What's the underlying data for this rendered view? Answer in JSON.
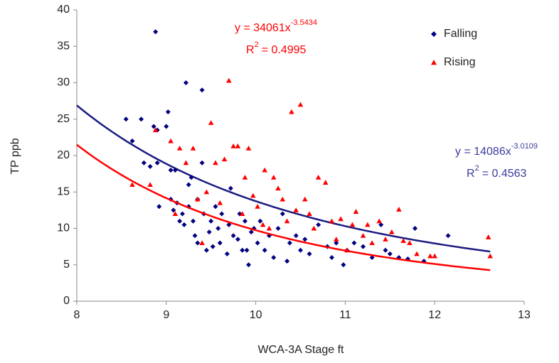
{
  "chart_data": {
    "type": "scatter",
    "x_label": "WCA-3A Stage ft",
    "y_label": "TP ppb",
    "xlim": [
      8,
      13
    ],
    "xticks": [
      8,
      9,
      10,
      11,
      12,
      13
    ],
    "ylim": [
      0,
      40
    ],
    "yticks": [
      0,
      5,
      10,
      15,
      20,
      25,
      30,
      35,
      40
    ],
    "grid": false,
    "legend": "top-right",
    "series": [
      {
        "name": "Falling",
        "color": "#000080",
        "marker": "diamond",
        "x": [
          8.55,
          8.62,
          8.72,
          8.75,
          8.82,
          8.86,
          8.88,
          8.9,
          8.9,
          8.92,
          9,
          9.02,
          9.05,
          9.05,
          9.08,
          9.1,
          9.12,
          9.15,
          9.18,
          9.2,
          9.22,
          9.25,
          9.25,
          9.28,
          9.3,
          9.32,
          9.35,
          9.35,
          9.4,
          9.4,
          9.42,
          9.45,
          9.48,
          9.5,
          9.52,
          9.55,
          9.58,
          9.6,
          9.62,
          9.68,
          9.7,
          9.72,
          9.75,
          9.8,
          9.82,
          9.85,
          9.88,
          9.9,
          9.92,
          9.95,
          9.98,
          10.02,
          10.05,
          10.1,
          10.15,
          10.2,
          10.25,
          10.3,
          10.35,
          10.38,
          10.45,
          10.5,
          10.55,
          10.6,
          10.7,
          10.8,
          10.85,
          10.9,
          10.98,
          11.02,
          11.1,
          11.2,
          11.3,
          11.4,
          11.45,
          11.5,
          11.6,
          11.7,
          11.78,
          11.88,
          12.15
        ],
        "values": [
          25,
          22,
          25,
          19,
          18.5,
          24,
          37,
          23.5,
          19,
          13,
          24,
          26,
          18,
          14,
          12.5,
          18,
          13.5,
          11,
          12,
          10.5,
          30,
          13,
          16,
          17,
          11,
          9,
          14,
          8,
          29,
          19,
          12,
          7,
          9.5,
          11,
          7.5,
          13,
          10,
          8,
          12,
          6.5,
          10.5,
          15.5,
          9,
          8.5,
          12,
          7,
          11,
          7,
          5,
          9.5,
          10,
          8,
          11,
          7,
          9,
          6,
          10,
          12,
          5.5,
          8,
          9,
          7,
          8.5,
          6.5,
          10.5,
          7.5,
          6,
          8,
          5,
          7,
          8,
          7.5,
          6,
          10.5,
          7,
          6.5,
          6,
          5.8,
          10,
          5.5,
          9
        ],
        "trendline": {
          "coefficient": 14086,
          "exponent": -3.0109,
          "x": [
            8,
            12.62
          ],
          "color": "#1a1a80",
          "label_color": "#3c3ca0",
          "equation": "y = 14086x",
          "equation_exponent": "-3.0109",
          "r_label": "R",
          "r_sup": "2",
          "r_text": "= 0.4563"
        }
      },
      {
        "name": "Rising",
        "color": "#ff0000",
        "marker": "triangle",
        "x": [
          8.62,
          8.82,
          8.88,
          9.05,
          9.1,
          9.15,
          9.22,
          9.3,
          9.35,
          9.4,
          9.45,
          9.5,
          9.55,
          9.6,
          9.65,
          9.7,
          9.75,
          9.8,
          9.85,
          9.88,
          9.92,
          9.97,
          10.02,
          10.08,
          10.1,
          10.15,
          10.2,
          10.25,
          10.3,
          10.35,
          10.4,
          10.45,
          10.5,
          10.55,
          10.6,
          10.65,
          10.7,
          10.78,
          10.85,
          10.9,
          10.95,
          11.02,
          11.08,
          11.12,
          11.2,
          11.25,
          11.3,
          11.38,
          11.45,
          11.52,
          11.6,
          11.65,
          11.72,
          11.8,
          11.95,
          12.0,
          12.6,
          12.62
        ],
        "values": [
          16,
          16,
          23.5,
          22,
          12,
          21,
          19,
          21,
          14,
          8,
          15,
          24.5,
          19,
          13.5,
          19.5,
          30.3,
          21.3,
          21.3,
          12,
          17,
          21,
          14.5,
          13,
          10.5,
          18,
          10,
          17,
          15.5,
          14,
          11,
          26,
          12.5,
          27,
          14,
          12,
          10,
          17,
          16.3,
          11,
          8.5,
          11.3,
          7,
          10.5,
          12.3,
          9,
          10.5,
          8,
          11,
          8.5,
          9.5,
          12.6,
          8.3,
          8,
          6.5,
          6.2,
          6.2,
          8.8,
          6.2
        ],
        "trendline": {
          "coefficient": 34061,
          "exponent": -3.5434,
          "x": [
            8,
            12.62
          ],
          "color": "#ff0000",
          "label_color": "#ff0000",
          "equation": "y = 34061x",
          "equation_exponent": "-3.5434",
          "r_label": "R",
          "r_sup": "2",
          "r_text": "= 0.4995"
        }
      }
    ]
  }
}
